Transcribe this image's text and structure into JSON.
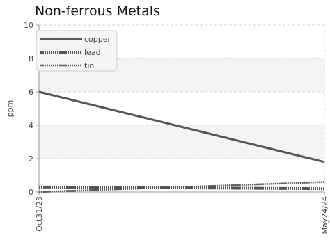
{
  "chart_data": {
    "type": "line",
    "title": "Non-ferrous Metals",
    "xlabel": "",
    "ylabel": "ppm",
    "x_categories": [
      "Oct31/23",
      "May24/24"
    ],
    "ylim": [
      0,
      10
    ],
    "yticks": [
      0,
      2,
      4,
      6,
      8,
      10
    ],
    "grid": true,
    "legend_position": "top-left",
    "series": [
      {
        "name": "copper",
        "values": [
          6.0,
          1.8
        ],
        "color": "#555555",
        "style": "solid"
      },
      {
        "name": "lead",
        "values": [
          0.3,
          0.2
        ],
        "color": "#555555",
        "style": "dashed-thick"
      },
      {
        "name": "tin",
        "values": [
          0.0,
          0.6
        ],
        "color": "#555555",
        "style": "dashed-thin"
      }
    ]
  }
}
